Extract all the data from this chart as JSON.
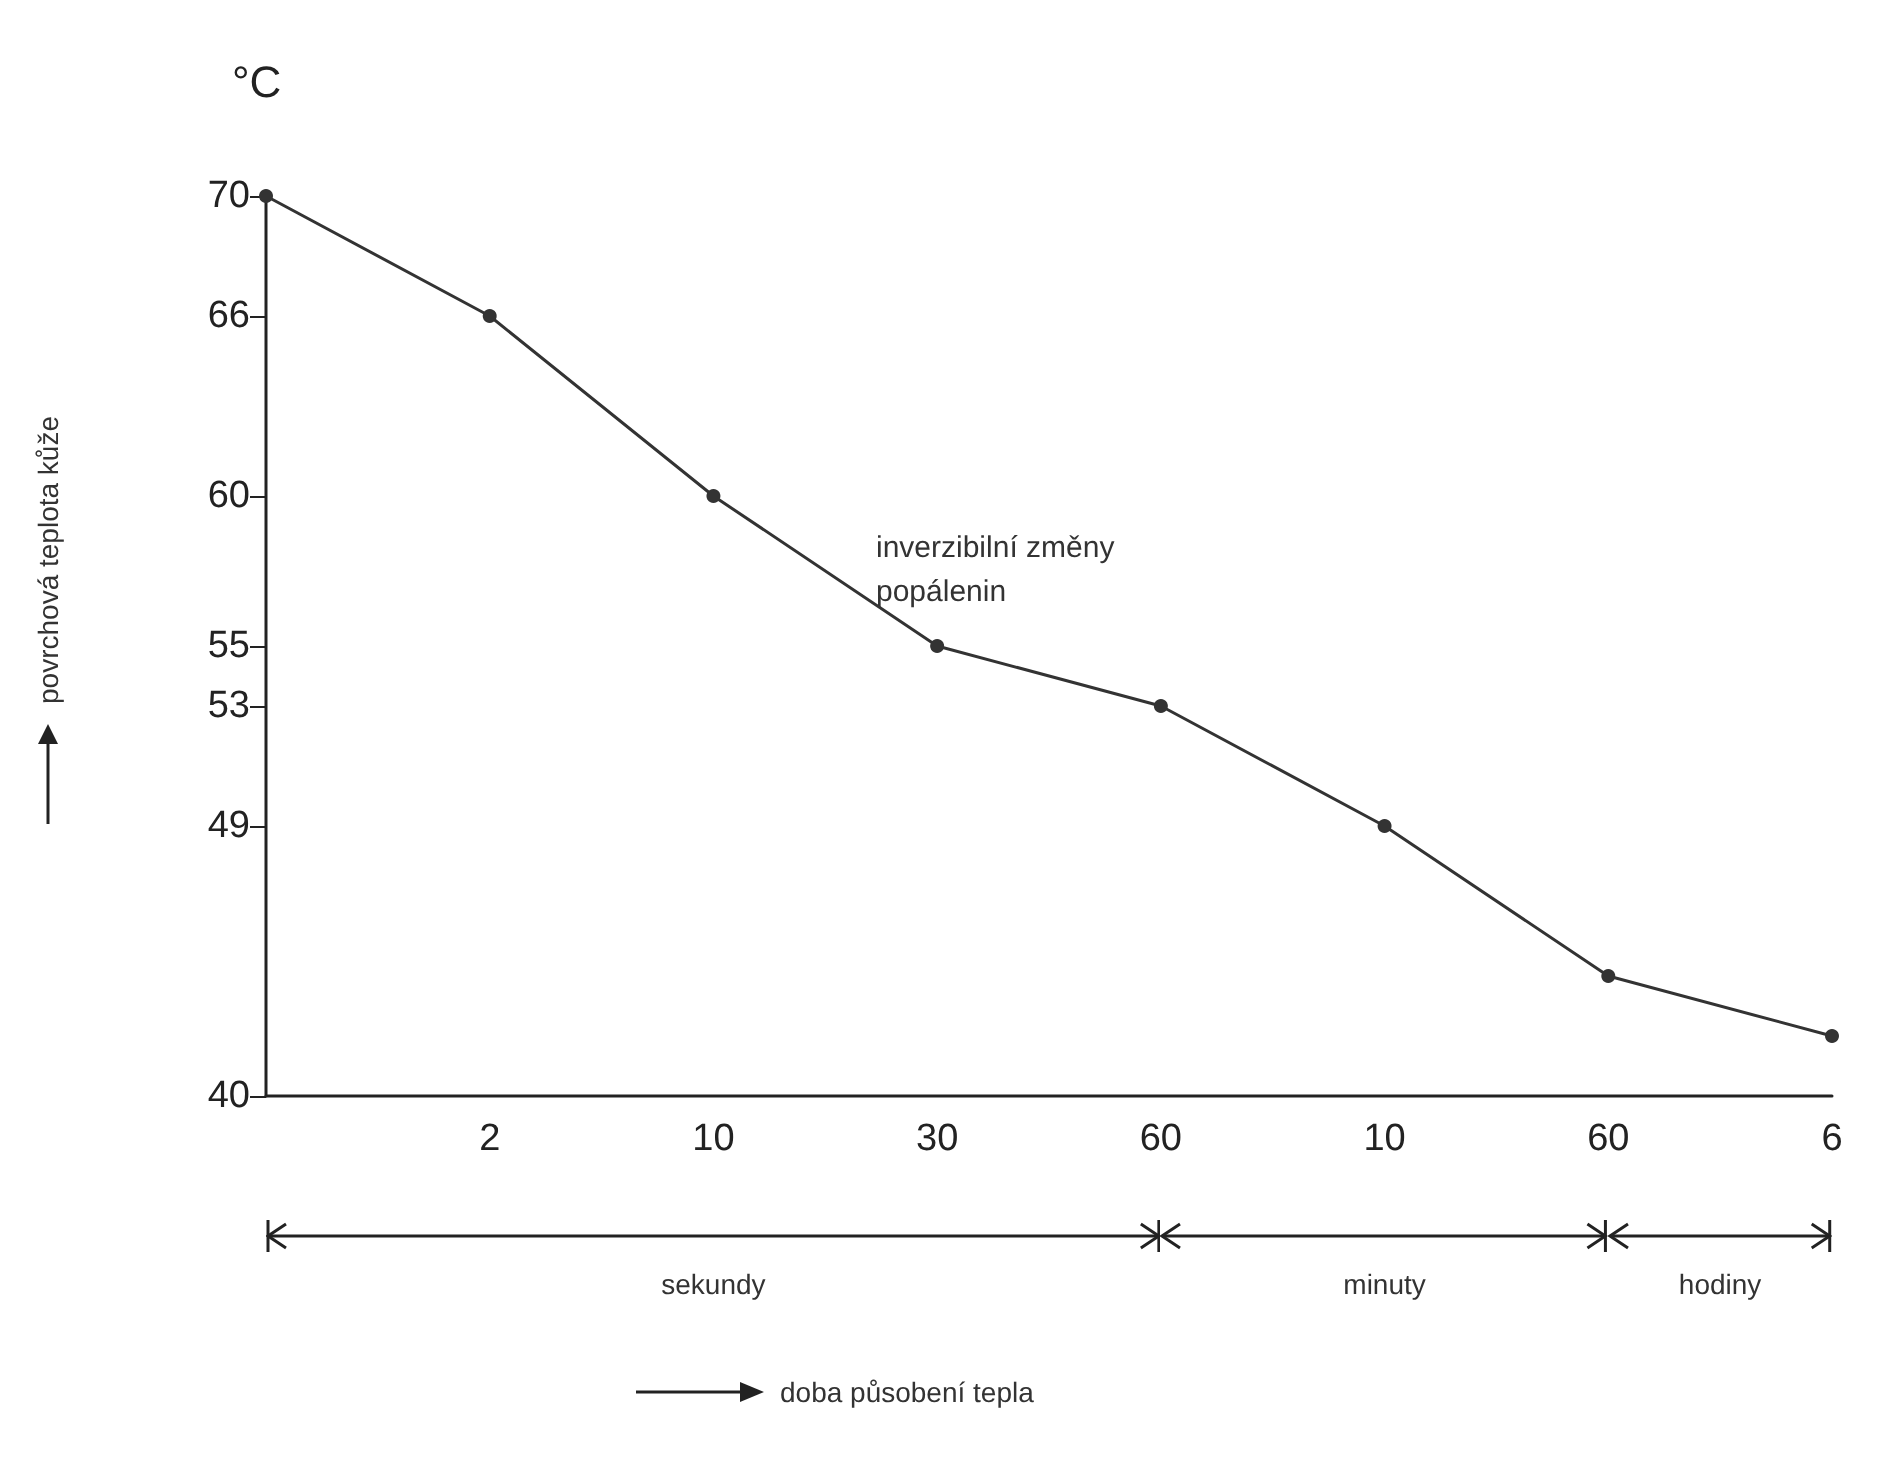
{
  "chart_data": {
    "type": "line",
    "categories": [
      null,
      "2",
      "10",
      "30",
      "60",
      "10",
      "60",
      "6"
    ],
    "series": [
      {
        "color": "#333333",
        "values": [
          70,
          66,
          60,
          55,
          53,
          49,
          44,
          42
        ]
      }
    ],
    "ylim": [
      40,
      70
    ],
    "yticks": [
      40,
      49,
      53,
      55,
      60,
      66,
      70
    ],
    "grid": false,
    "marker": "circle",
    "line_style": "solid",
    "annotations": [
      "°C",
      "inverzibilní změny\npopálenin",
      "sekundy",
      "minuty",
      "hodiny",
      "povrchová teplota kůže",
      "doba působení tepla"
    ]
  }
}
